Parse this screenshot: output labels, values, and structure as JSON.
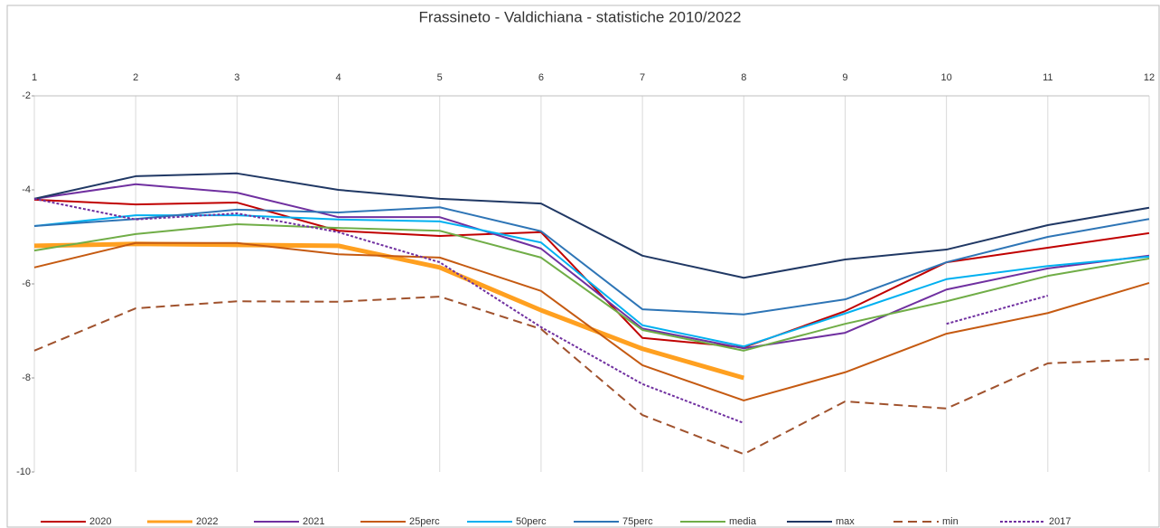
{
  "chart_data": {
    "type": "line",
    "title": "Frassineto - Valdichiana - statistiche 2010/2022",
    "categories": [
      "1",
      "2",
      "3",
      "4",
      "5",
      "6",
      "7",
      "8",
      "9",
      "10",
      "11",
      "12"
    ],
    "ylim": [
      -10,
      -2
    ],
    "yticks": [
      -2,
      -4,
      -6,
      -8,
      -10
    ],
    "grid": true,
    "legend": "bottom",
    "series": [
      {
        "name": "2020",
        "color": "#c00000",
        "line_width": 2,
        "dash": "solid",
        "values": [
          -4.21,
          -4.31,
          -4.27,
          -4.87,
          -4.98,
          -4.9,
          -7.15,
          -7.35,
          -6.58,
          -5.54,
          -5.23,
          -4.92
        ]
      },
      {
        "name": "2022",
        "color": "#ffa020",
        "line_width": 5,
        "dash": "solid",
        "values": [
          -5.19,
          -5.15,
          -5.17,
          -5.19,
          -5.65,
          -6.56,
          -7.38,
          -8.0,
          null,
          null,
          null,
          null
        ]
      },
      {
        "name": "2021",
        "color": "#7030a0",
        "line_width": 2,
        "dash": "solid",
        "values": [
          -4.19,
          -3.88,
          -4.06,
          -4.58,
          -4.58,
          -5.25,
          -6.95,
          -7.37,
          -7.04,
          -6.12,
          -5.67,
          -5.4
        ]
      },
      {
        "name": "25perc",
        "color": "#c55a11",
        "line_width": 2,
        "dash": "solid",
        "values": [
          -5.65,
          -5.13,
          -5.13,
          -5.37,
          -5.44,
          -6.15,
          -7.73,
          -8.48,
          -7.88,
          -7.06,
          -6.62,
          -5.98
        ]
      },
      {
        "name": "50perc",
        "color": "#00b0f0",
        "line_width": 2,
        "dash": "solid",
        "values": [
          -4.77,
          -4.54,
          -4.54,
          -4.63,
          -4.67,
          -5.12,
          -6.88,
          -7.33,
          -6.63,
          -5.9,
          -5.62,
          -5.42
        ]
      },
      {
        "name": "75perc",
        "color": "#2e75b6",
        "line_width": 2,
        "dash": "solid",
        "values": [
          -4.77,
          -4.62,
          -4.42,
          -4.48,
          -4.37,
          -4.88,
          -6.54,
          -6.65,
          -6.33,
          -5.54,
          -5.0,
          -4.62
        ]
      },
      {
        "name": "media",
        "color": "#70ad47",
        "line_width": 2,
        "dash": "solid",
        "values": [
          -5.29,
          -4.94,
          -4.73,
          -4.81,
          -4.87,
          -5.44,
          -6.98,
          -7.42,
          -6.85,
          -6.37,
          -5.83,
          -5.46
        ]
      },
      {
        "name": "max",
        "color": "#203864",
        "line_width": 2,
        "dash": "solid",
        "values": [
          -4.19,
          -3.71,
          -3.65,
          -4.0,
          -4.19,
          -4.29,
          -5.4,
          -5.87,
          -5.48,
          -5.27,
          -4.75,
          -4.38
        ]
      },
      {
        "name": "min",
        "color": "#a0522d",
        "line_width": 2,
        "dash": "dashed",
        "values": [
          -7.42,
          -6.52,
          -6.37,
          -6.38,
          -6.27,
          -6.96,
          -8.79,
          -9.62,
          -8.5,
          -8.65,
          -7.69,
          -7.6
        ]
      },
      {
        "name": "2017",
        "color": "#7030a0",
        "line_width": 2,
        "dash": "dotted",
        "values": [
          -4.19,
          -4.63,
          -4.5,
          -4.9,
          -5.54,
          -6.92,
          -8.13,
          -8.96,
          null,
          -6.85,
          -6.25,
          null
        ]
      }
    ]
  }
}
